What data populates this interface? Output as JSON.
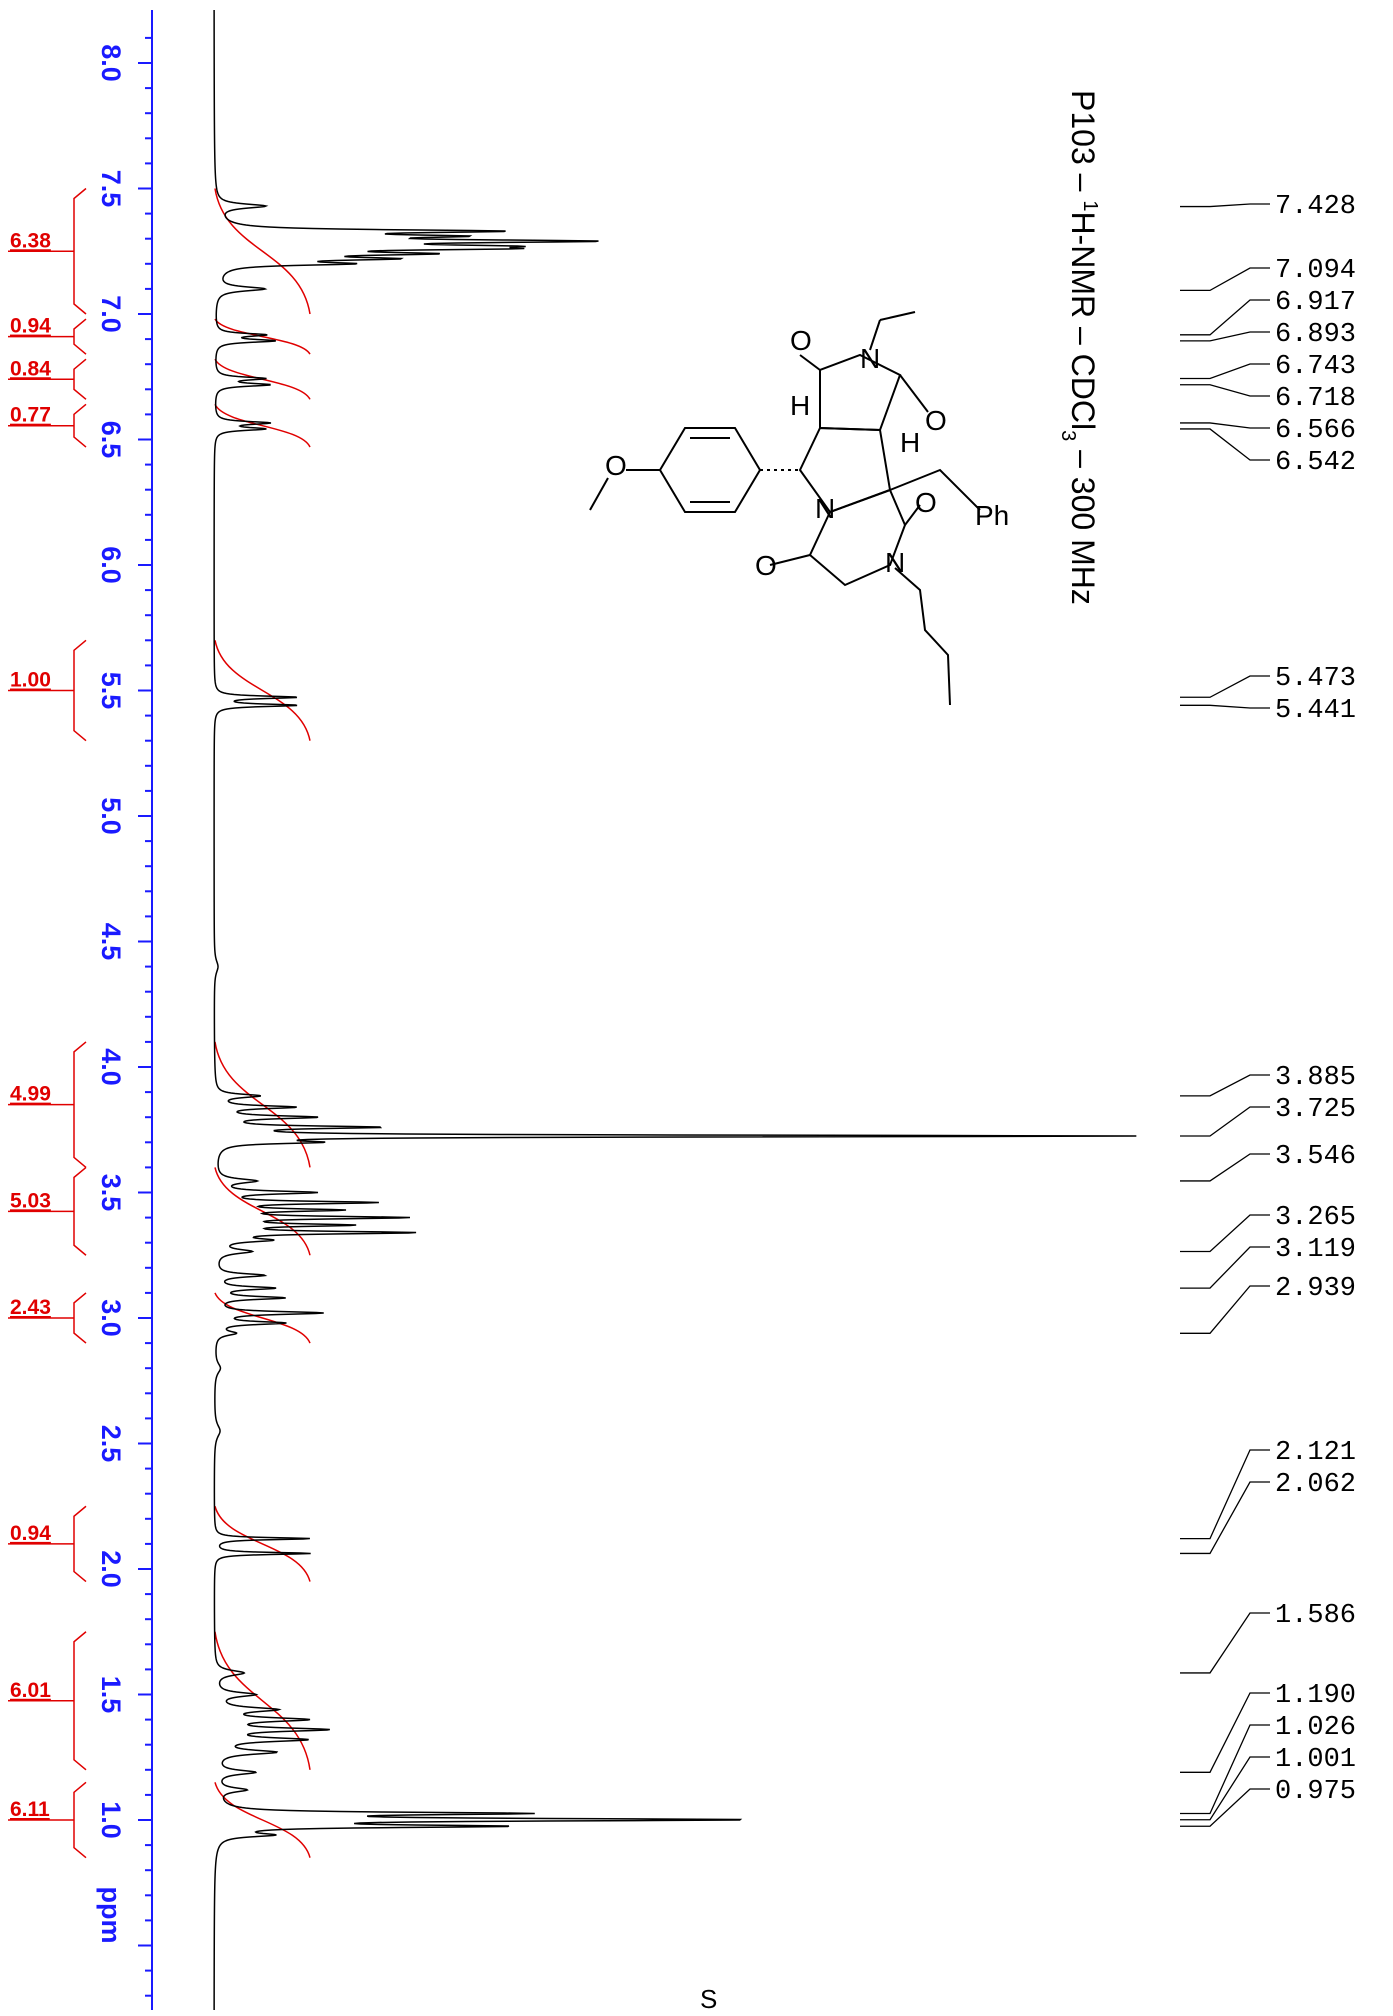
{
  "title": {
    "prefix": "P103 – ",
    "sup": "1",
    "nucleus": "H-NMR – CDCl",
    "sub": "3",
    "suffix": " – 300 MHz"
  },
  "structure_labels": {
    "ph": "Ph",
    "o": "O",
    "n": "N",
    "h": "H"
  },
  "solvent_mark": "S",
  "chart_data": {
    "type": "line",
    "xlabel": "ppm",
    "x_ticks": [
      "8.0",
      "7.5",
      "7.0",
      "6.5",
      "6.0",
      "5.5",
      "5.0",
      "4.5",
      "4.0",
      "3.5",
      "3.0",
      "2.5",
      "2.0",
      "1.5",
      "1.0"
    ],
    "x_range": [
      8.2,
      -0.6
    ],
    "peak_labels": [
      "7.428",
      "7.094",
      "6.917",
      "6.893",
      "6.743",
      "6.718",
      "6.566",
      "6.542",
      "5.473",
      "5.441",
      "3.885",
      "3.725",
      "3.546",
      "3.265",
      "3.119",
      "2.939",
      "2.121",
      "2.062",
      "1.586",
      "1.190",
      "1.026",
      "1.001",
      "0.975"
    ],
    "integrals": [
      {
        "label": "6.38",
        "from": 7.5,
        "to": 7.0
      },
      {
        "label": "0.94",
        "from": 6.98,
        "to": 6.84
      },
      {
        "label": "0.84",
        "from": 6.82,
        "to": 6.66
      },
      {
        "label": "0.77",
        "from": 6.64,
        "to": 6.47
      },
      {
        "label": "1.00",
        "from": 5.7,
        "to": 5.3
      },
      {
        "label": "4.99",
        "from": 4.1,
        "to": 3.6
      },
      {
        "label": "5.03",
        "from": 3.6,
        "to": 3.25
      },
      {
        "label": "2.43",
        "from": 3.1,
        "to": 2.9
      },
      {
        "label": "0.94",
        "from": 2.25,
        "to": 1.95
      },
      {
        "label": "6.01",
        "from": 1.75,
        "to": 1.2
      },
      {
        "label": "6.11",
        "from": 1.15,
        "to": 0.85
      }
    ],
    "peaks": [
      {
        "ppm": 7.43,
        "h": 0.05,
        "w": 0.01
      },
      {
        "ppm": 7.33,
        "h": 0.27,
        "w": 0.007
      },
      {
        "ppm": 7.31,
        "h": 0.19,
        "w": 0.007
      },
      {
        "ppm": 7.29,
        "h": 0.34,
        "w": 0.007
      },
      {
        "ppm": 7.27,
        "h": 0.21,
        "w": 0.007
      },
      {
        "ppm": 7.26,
        "h": 0.2,
        "w": 0.006
      },
      {
        "ppm": 7.24,
        "h": 0.18,
        "w": 0.007
      },
      {
        "ppm": 7.22,
        "h": 0.15,
        "w": 0.007
      },
      {
        "ppm": 7.2,
        "h": 0.12,
        "w": 0.007
      },
      {
        "ppm": 7.1,
        "h": 0.05,
        "w": 0.01
      },
      {
        "ppm": 6.917,
        "h": 0.05,
        "w": 0.007
      },
      {
        "ppm": 6.893,
        "h": 0.06,
        "w": 0.007
      },
      {
        "ppm": 6.743,
        "h": 0.05,
        "w": 0.007
      },
      {
        "ppm": 6.718,
        "h": 0.055,
        "w": 0.007
      },
      {
        "ppm": 6.566,
        "h": 0.055,
        "w": 0.007
      },
      {
        "ppm": 6.542,
        "h": 0.05,
        "w": 0.007
      },
      {
        "ppm": 5.473,
        "h": 0.085,
        "w": 0.006
      },
      {
        "ppm": 5.441,
        "h": 0.085,
        "w": 0.006
      },
      {
        "ppm": 4.4,
        "h": 0.004,
        "w": 0.03
      },
      {
        "ppm": 3.885,
        "h": 0.045,
        "w": 0.008
      },
      {
        "ppm": 3.84,
        "h": 0.08,
        "w": 0.007
      },
      {
        "ppm": 3.8,
        "h": 0.1,
        "w": 0.007
      },
      {
        "ppm": 3.76,
        "h": 0.16,
        "w": 0.006
      },
      {
        "ppm": 3.725,
        "h": 0.95,
        "w": 0.004
      },
      {
        "ppm": 3.7,
        "h": 0.09,
        "w": 0.006
      },
      {
        "ppm": 3.546,
        "h": 0.04,
        "w": 0.01
      },
      {
        "ppm": 3.5,
        "h": 0.1,
        "w": 0.007
      },
      {
        "ppm": 3.46,
        "h": 0.16,
        "w": 0.006
      },
      {
        "ppm": 3.43,
        "h": 0.12,
        "w": 0.006
      },
      {
        "ppm": 3.4,
        "h": 0.19,
        "w": 0.006
      },
      {
        "ppm": 3.37,
        "h": 0.13,
        "w": 0.006
      },
      {
        "ppm": 3.34,
        "h": 0.2,
        "w": 0.006
      },
      {
        "ppm": 3.31,
        "h": 0.05,
        "w": 0.008
      },
      {
        "ppm": 3.265,
        "h": 0.035,
        "w": 0.01
      },
      {
        "ppm": 3.17,
        "h": 0.05,
        "w": 0.008
      },
      {
        "ppm": 3.119,
        "h": 0.06,
        "w": 0.007
      },
      {
        "ppm": 3.08,
        "h": 0.07,
        "w": 0.007
      },
      {
        "ppm": 3.02,
        "h": 0.11,
        "w": 0.007
      },
      {
        "ppm": 2.98,
        "h": 0.07,
        "w": 0.007
      },
      {
        "ppm": 2.939,
        "h": 0.02,
        "w": 0.01
      },
      {
        "ppm": 2.8,
        "h": 0.006,
        "w": 0.025
      },
      {
        "ppm": 2.55,
        "h": 0.006,
        "w": 0.03
      },
      {
        "ppm": 2.121,
        "h": 0.1,
        "w": 0.005
      },
      {
        "ppm": 2.062,
        "h": 0.1,
        "w": 0.005
      },
      {
        "ppm": 1.586,
        "h": 0.03,
        "w": 0.012
      },
      {
        "ppm": 1.5,
        "h": 0.04,
        "w": 0.01
      },
      {
        "ppm": 1.44,
        "h": 0.06,
        "w": 0.01
      },
      {
        "ppm": 1.4,
        "h": 0.09,
        "w": 0.009
      },
      {
        "ppm": 1.36,
        "h": 0.11,
        "w": 0.008
      },
      {
        "ppm": 1.32,
        "h": 0.09,
        "w": 0.009
      },
      {
        "ppm": 1.27,
        "h": 0.06,
        "w": 0.01
      },
      {
        "ppm": 1.19,
        "h": 0.04,
        "w": 0.01
      },
      {
        "ppm": 1.12,
        "h": 0.03,
        "w": 0.01
      },
      {
        "ppm": 1.026,
        "h": 0.3,
        "w": 0.006
      },
      {
        "ppm": 1.001,
        "h": 0.53,
        "w": 0.006
      },
      {
        "ppm": 0.975,
        "h": 0.28,
        "w": 0.006
      },
      {
        "ppm": 0.94,
        "h": 0.05,
        "w": 0.008
      }
    ]
  }
}
